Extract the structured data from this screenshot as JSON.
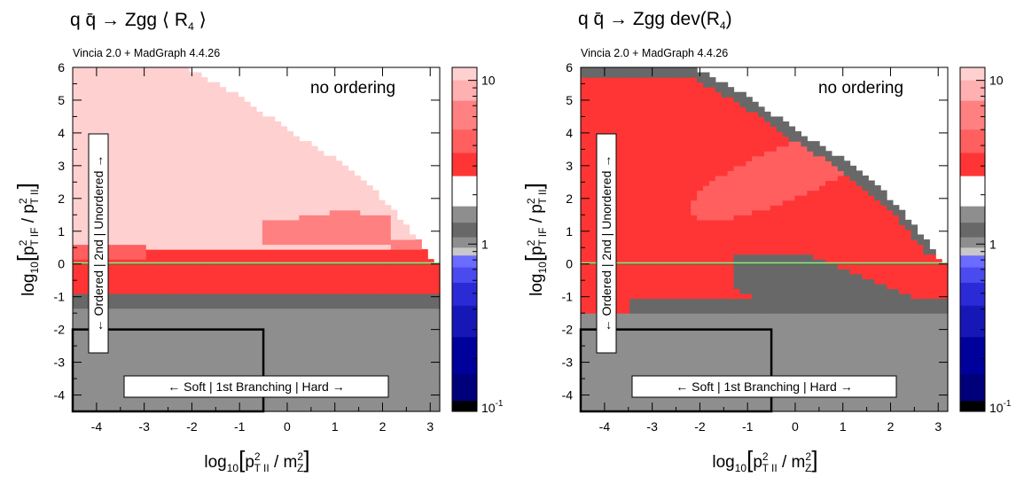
{
  "panels": [
    {
      "title_main": "q q̄ → Zgg  ⟨ R",
      "title_sub": "4",
      "title_end": " ⟩",
      "subtitle": "Vincia 2.0 + MadGraph 4.4.26",
      "annotation": "no ordering",
      "box_h_label": "← Soft | 1st Branching | Hard →",
      "box_v_label": "← Ordered | 2nd | Unordered →"
    },
    {
      "title_main": "q q̄ → Zgg   dev(R",
      "title_sub": "4",
      "title_end": ")",
      "subtitle": "Vincia 2.0 + MadGraph 4.4.26",
      "annotation": "no ordering",
      "box_h_label": "← Soft | 1st Branching | Hard →",
      "box_v_label": "← Ordered | 2nd | Unordered →"
    }
  ],
  "axis_text": {
    "x_log": "log",
    "x_log_sub": "10",
    "x_p": "p",
    "x_p_sup": "2",
    "x_p_sub": "T II",
    "x_rest": " / m",
    "x_m_sup": "2",
    "x_m_sub": "Z",
    "y_log": "log",
    "y_log_sub": "10",
    "y_p1": "p",
    "y_p1_sup": "2",
    "y_p1_sub": "T IF",
    "y_mid": " / p",
    "y_p2_sup": "2",
    "y_p2_sub": "T II"
  },
  "colorbar": {
    "ticks": [
      {
        "label": "10",
        "sup": "",
        "value": 10
      },
      {
        "label": "1",
        "sup": "",
        "value": 1
      },
      {
        "label": "10",
        "sup": "-1",
        "value": 0.1
      }
    ],
    "bands_top_to_bottom": [
      "#ffd0d0",
      "#ffb0b0",
      "#ff8080",
      "#ff5f5f",
      "#ff3535",
      "#ffffff",
      "#8e8e8e",
      "#686868",
      "#8e8e8e",
      "#c8c8c8",
      "#6b6bff",
      "#4a4aee",
      "#2a2ad6",
      "#1717b8",
      "#00009a",
      "#00007a",
      "#000000"
    ],
    "band_value_edges": [
      12,
      10,
      7.5,
      5,
      3.6,
      2.6,
      1.7,
      1.35,
      1.1,
      0.95,
      0.85,
      0.72,
      0.58,
      0.42,
      0.27,
      0.16,
      0.11,
      0.095
    ]
  },
  "chart_data": [
    {
      "type": "heatmap",
      "title": "q q̄ → Zgg ⟨ R4 ⟩",
      "subtitle": "Vincia 2.0 + MadGraph 4.4.26",
      "xlabel": "log10[p²_T II / m²_Z]",
      "ylabel": "log10[p²_T IF / p²_T II]",
      "xlim": [
        -4.5,
        3.2
      ],
      "ylim": [
        -4.5,
        6
      ],
      "x_ticks": [
        -4,
        -3,
        -2,
        -1,
        0,
        1,
        2,
        3
      ],
      "y_ticks": [
        -4,
        -3,
        -2,
        -1,
        0,
        1,
        2,
        3,
        4,
        5,
        6
      ],
      "colorbar_scale": "log",
      "colorbar_range": [
        0.095,
        12
      ],
      "filled_region_upper_boundary": [
        [
          -2.1,
          6
        ],
        [
          -1.0,
          5.1
        ],
        [
          0,
          4.1
        ],
        [
          1.0,
          3.2
        ],
        [
          2.0,
          2.0
        ],
        [
          2.8,
          0.6
        ],
        [
          3.1,
          0.0
        ]
      ],
      "regions": [
        {
          "description": "upper wedge",
          "value": 10
        },
        {
          "description": "band 0.6 to 1.3 for x > -0.5",
          "value": 5
        },
        {
          "description": "band 0.2 to 0.5 across",
          "value": 3
        },
        {
          "description": "just below y = 0",
          "value": 2.5
        },
        {
          "description": "y < -1.3",
          "value": 1
        }
      ],
      "reference_line_y": 0,
      "box": {
        "x": [
          -4.5,
          -0.5
        ],
        "y": [
          -4.5,
          -2
        ]
      }
    },
    {
      "type": "heatmap",
      "title": "q q̄ → Zgg dev(R4)",
      "subtitle": "Vincia 2.0 + MadGraph 4.4.26",
      "xlabel": "log10[p²_T II / m²_Z]",
      "ylabel": "log10[p²_T IF / p²_T II]",
      "xlim": [
        -4.5,
        3.2
      ],
      "ylim": [
        -4.5,
        6
      ],
      "x_ticks": [
        -4,
        -3,
        -2,
        -1,
        0,
        1,
        2,
        3
      ],
      "y_ticks": [
        -4,
        -3,
        -2,
        -1,
        0,
        1,
        2,
        3,
        4,
        5,
        6
      ],
      "colorbar_scale": "log",
      "colorbar_range": [
        0.095,
        12
      ],
      "filled_region_upper_boundary": [
        [
          -4.5,
          6
        ],
        [
          -2.1,
          6
        ],
        [
          -1.0,
          5.1
        ],
        [
          0,
          4.1
        ],
        [
          1.0,
          3.2
        ],
        [
          2.0,
          2.0
        ],
        [
          2.8,
          0.6
        ],
        [
          3.1,
          0.0
        ]
      ],
      "regions": [
        {
          "description": "outer filled region",
          "value": 2.5
        },
        {
          "description": "inner ellipse around x -2 to 1, y 1 to 4",
          "value": 5
        },
        {
          "description": "grey wedge below diagonal from x -1.5",
          "value": 1.2
        },
        {
          "description": "y < -1.5",
          "value": 1
        }
      ],
      "reference_line_y": 0,
      "box": {
        "x": [
          -4.5,
          -0.5
        ],
        "y": [
          -4.5,
          -2
        ]
      }
    }
  ]
}
